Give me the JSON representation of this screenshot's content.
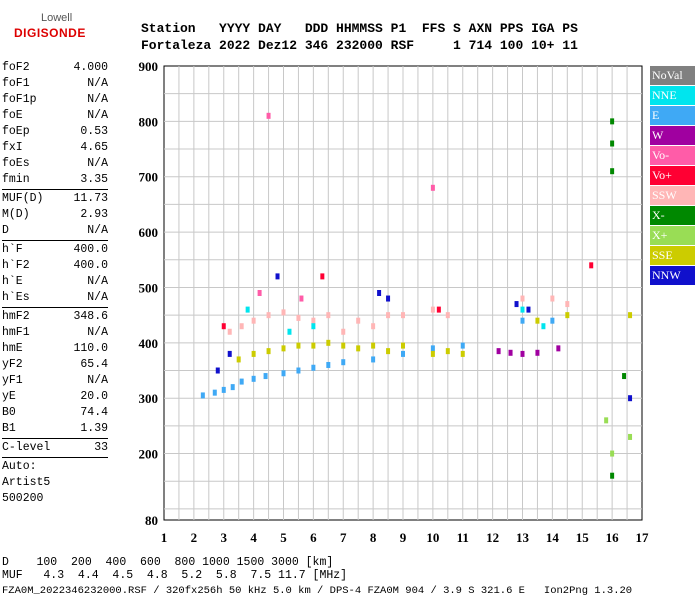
{
  "logo": {
    "line1": "Lowell",
    "line2": "DIGISONDE"
  },
  "header": {
    "row1": "Station   YYYY DAY   DDD HHMMSS P1  FFS S AXN PPS IGA PS",
    "row2": "Fortaleza 2022 Dez12 346 232000 RSF     1 714 100 10+ 11"
  },
  "params_group1": [
    {
      "k": "foF2",
      "v": "4.000"
    },
    {
      "k": "foF1",
      "v": "N/A"
    },
    {
      "k": "foF1p",
      "v": "N/A"
    },
    {
      "k": "foE",
      "v": "N/A"
    },
    {
      "k": "foEp",
      "v": "0.53"
    },
    {
      "k": "fxI",
      "v": "4.65"
    },
    {
      "k": "foEs",
      "v": "N/A"
    },
    {
      "k": "fmin",
      "v": "3.35"
    }
  ],
  "params_group2": [
    {
      "k": "MUF(D)",
      "v": "11.73"
    },
    {
      "k": "M(D)",
      "v": "2.93"
    },
    {
      "k": "D",
      "v": "N/A"
    }
  ],
  "params_group3": [
    {
      "k": "h`F",
      "v": "400.0"
    },
    {
      "k": "h`F2",
      "v": "400.0"
    },
    {
      "k": "h`E",
      "v": "N/A"
    },
    {
      "k": "h`Es",
      "v": "N/A"
    }
  ],
  "params_group4": [
    {
      "k": "hmF2",
      "v": "348.6"
    },
    {
      "k": "hmF1",
      "v": "N/A"
    },
    {
      "k": "hmE",
      "v": "110.0"
    },
    {
      "k": "yF2",
      "v": "65.4"
    },
    {
      "k": "yF1",
      "v": "N/A"
    },
    {
      "k": "yE",
      "v": "20.0"
    },
    {
      "k": "B0",
      "v": "74.4"
    },
    {
      "k": "B1",
      "v": "1.39"
    }
  ],
  "params_group5": [
    {
      "k": "C-level",
      "v": "33"
    }
  ],
  "auto": {
    "l1": "Auto:",
    "l2": "Artist5",
    "l3": "500200"
  },
  "footer": {
    "row1": "D    100  200  400  600  800 1000 1500 3000 [km]",
    "row2": "MUF   4.3  4.4  4.5  4.8  5.2  5.8  7.5 11.7 [MHz]",
    "line": "FZA0M_2022346232000.RSF / 320fx256h 50 kHz 5.0 km / DPS-4 FZA0M 904 / 3.9 S 321.6 E   Ion2Png 1.3.20"
  },
  "legend": [
    {
      "label": "NoVal",
      "color": "#808080"
    },
    {
      "label": "NNE",
      "color": "#00e5ee"
    },
    {
      "label": "E",
      "color": "#3fa9f5"
    },
    {
      "label": "W",
      "color": "#a000a0"
    },
    {
      "label": "Vo-",
      "color": "#ff5ca8"
    },
    {
      "label": "Vo+",
      "color": "#ff0033"
    },
    {
      "label": "SSW",
      "color": "#ffb6b6"
    },
    {
      "label": "X-",
      "color": "#008800"
    },
    {
      "label": "X+",
      "color": "#99dd55"
    },
    {
      "label": "SSE",
      "color": "#cccc00"
    },
    {
      "label": "NNW",
      "color": "#1010cc"
    }
  ],
  "chart_data": {
    "type": "scatter",
    "title": "",
    "xlabel": "",
    "ylabel": "",
    "xlim": [
      1,
      17
    ],
    "ylim": [
      80,
      900
    ],
    "x_ticks": [
      "1",
      "2",
      "3",
      "4",
      "5",
      "6",
      "7",
      "8",
      "9",
      "10",
      "11",
      "12",
      "13",
      "14",
      "15",
      "16",
      "17"
    ],
    "y_ticks": [
      "80",
      "200",
      "300",
      "400",
      "500",
      "600",
      "700",
      "800",
      "900"
    ],
    "grid": true,
    "legend_position": "right",
    "series": [
      {
        "name": "E",
        "points": [
          [
            2.3,
            305
          ],
          [
            2.7,
            310
          ],
          [
            3.0,
            315
          ],
          [
            3.3,
            320
          ],
          [
            3.6,
            330
          ],
          [
            4.0,
            335
          ],
          [
            4.4,
            340
          ],
          [
            5.0,
            345
          ],
          [
            5.5,
            350
          ],
          [
            6.0,
            355
          ],
          [
            6.5,
            360
          ],
          [
            7.0,
            365
          ],
          [
            8.0,
            370
          ],
          [
            9.0,
            380
          ],
          [
            10.0,
            390
          ],
          [
            11.0,
            395
          ],
          [
            13.0,
            440
          ],
          [
            14.0,
            440
          ]
        ]
      },
      {
        "name": "SSE",
        "points": [
          [
            3.5,
            370
          ],
          [
            4.0,
            380
          ],
          [
            4.5,
            385
          ],
          [
            5.0,
            390
          ],
          [
            5.5,
            395
          ],
          [
            6.0,
            395
          ],
          [
            6.5,
            400
          ],
          [
            7.0,
            395
          ],
          [
            7.5,
            390
          ],
          [
            8.0,
            395
          ],
          [
            8.5,
            385
          ],
          [
            9.0,
            395
          ],
          [
            10.0,
            380
          ],
          [
            10.5,
            385
          ],
          [
            11.0,
            380
          ],
          [
            13.5,
            440
          ],
          [
            14.5,
            450
          ],
          [
            16.6,
            450
          ]
        ]
      },
      {
        "name": "SSW",
        "points": [
          [
            3.2,
            420
          ],
          [
            3.6,
            430
          ],
          [
            4.0,
            440
          ],
          [
            4.5,
            450
          ],
          [
            5.0,
            455
          ],
          [
            5.5,
            445
          ],
          [
            6.0,
            440
          ],
          [
            6.5,
            450
          ],
          [
            7.0,
            420
          ],
          [
            7.5,
            440
          ],
          [
            8.0,
            430
          ],
          [
            8.5,
            450
          ],
          [
            9.0,
            450
          ],
          [
            10.0,
            460
          ],
          [
            10.5,
            450
          ],
          [
            13.0,
            480
          ],
          [
            14.0,
            480
          ],
          [
            14.5,
            470
          ]
        ]
      },
      {
        "name": "NNW",
        "points": [
          [
            2.8,
            350
          ],
          [
            3.2,
            380
          ],
          [
            4.8,
            520
          ],
          [
            8.2,
            490
          ],
          [
            8.5,
            480
          ],
          [
            12.8,
            470
          ],
          [
            13.2,
            460
          ],
          [
            16.6,
            300
          ]
        ]
      },
      {
        "name": "W",
        "points": [
          [
            12.2,
            385
          ],
          [
            12.6,
            382
          ],
          [
            13.0,
            380
          ],
          [
            13.5,
            382
          ],
          [
            14.2,
            390
          ]
        ]
      },
      {
        "name": "X-",
        "points": [
          [
            16.0,
            800
          ],
          [
            16.0,
            760
          ],
          [
            16.0,
            710
          ],
          [
            16.4,
            340
          ],
          [
            16.0,
            160
          ]
        ]
      },
      {
        "name": "Vo-",
        "points": [
          [
            4.2,
            490
          ],
          [
            5.6,
            480
          ],
          [
            10.0,
            680
          ],
          [
            4.5,
            810
          ]
        ]
      },
      {
        "name": "Vo+",
        "points": [
          [
            3.0,
            430
          ],
          [
            6.3,
            520
          ],
          [
            10.2,
            460
          ],
          [
            15.3,
            540
          ]
        ]
      },
      {
        "name": "X+",
        "points": [
          [
            16.0,
            200
          ],
          [
            15.8,
            260
          ],
          [
            16.6,
            230
          ]
        ]
      },
      {
        "name": "NNE",
        "points": [
          [
            3.8,
            460
          ],
          [
            5.2,
            420
          ],
          [
            6.0,
            430
          ],
          [
            13.0,
            460
          ],
          [
            13.7,
            430
          ]
        ]
      }
    ]
  }
}
